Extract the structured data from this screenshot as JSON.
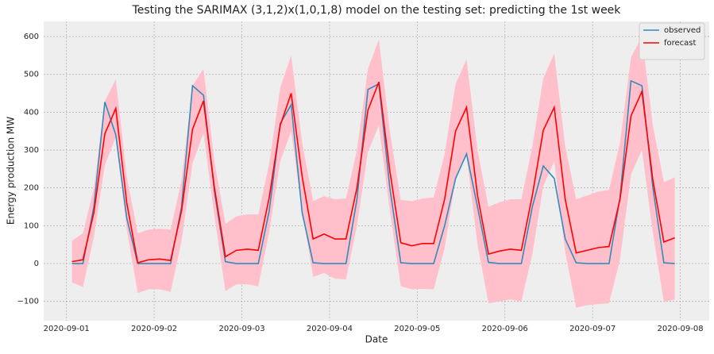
{
  "chart_data": {
    "type": "line",
    "title": "Testing the SARIMAX (3,1,2)x(1,0,1,8) model on the testing set: predicting the 1st week",
    "x_label": "Date",
    "y_label": "Energy production MW",
    "x": [
      1.0625,
      1.1875,
      1.3125,
      1.4375,
      1.5625,
      1.6875,
      1.8125,
      1.9375,
      2.0625,
      2.1875,
      2.3125,
      2.4375,
      2.5625,
      2.6875,
      2.8125,
      2.9375,
      3.0625,
      3.1875,
      3.3125,
      3.4375,
      3.5625,
      3.6875,
      3.8125,
      3.9375,
      4.0625,
      4.1875,
      4.3125,
      4.4375,
      4.5625,
      4.6875,
      4.8125,
      4.9375,
      5.0625,
      5.1875,
      5.3125,
      5.4375,
      5.5625,
      5.6875,
      5.8125,
      5.9375,
      6.0625,
      6.1875,
      6.3125,
      6.4375,
      6.5625,
      6.6875,
      6.8125,
      6.9375,
      7.0625,
      7.1875,
      7.3125,
      7.4375,
      7.5625,
      7.6875,
      7.8125,
      7.9375
    ],
    "band": {
      "color": "#ffc0cb",
      "upper": [
        60,
        80,
        200,
        430,
        487,
        230,
        80,
        90,
        92,
        90,
        220,
        470,
        515,
        270,
        105,
        125,
        130,
        130,
        265,
        465,
        550,
        320,
        165,
        178,
        170,
        172,
        300,
        515,
        592,
        350,
        168,
        165,
        172,
        175,
        290,
        475,
        540,
        300,
        150,
        162,
        170,
        170,
        310,
        490,
        555,
        310,
        170,
        180,
        190,
        195,
        320,
        545,
        600,
        365,
        215,
        228
      ],
      "lower": [
        -50,
        -62,
        70,
        260,
        335,
        90,
        -78,
        -68,
        -68,
        -75,
        60,
        265,
        345,
        125,
        -73,
        -55,
        -55,
        -60,
        85,
        270,
        350,
        140,
        -35,
        -25,
        -40,
        -42,
        100,
        295,
        365,
        140,
        -60,
        -68,
        -67,
        -68,
        40,
        225,
        285,
        50,
        -105,
        -100,
        -95,
        -100,
        25,
        205,
        270,
        30,
        -117,
        -110,
        -107,
        -105,
        10,
        235,
        300,
        80,
        -102,
        -95
      ]
    },
    "series": [
      {
        "name": "observed",
        "color": "#348abd",
        "values": [
          0,
          0,
          150,
          427,
          340,
          120,
          0,
          0,
          0,
          0,
          150,
          470,
          445,
          190,
          5,
          0,
          0,
          0,
          140,
          370,
          420,
          135,
          2,
          0,
          0,
          0,
          170,
          460,
          475,
          200,
          2,
          0,
          0,
          0,
          100,
          225,
          290,
          150,
          3,
          0,
          0,
          0,
          150,
          258,
          225,
          65,
          2,
          0,
          0,
          0,
          175,
          483,
          470,
          200,
          2,
          0
        ]
      },
      {
        "name": "forecast",
        "color": "#ff0000",
        "values": [
          5,
          10,
          135,
          343,
          410,
          160,
          2,
          10,
          12,
          8,
          140,
          355,
          430,
          200,
          18,
          35,
          38,
          35,
          175,
          365,
          450,
          230,
          65,
          78,
          65,
          65,
          200,
          405,
          480,
          245,
          55,
          47,
          53,
          53,
          170,
          350,
          413,
          180,
          25,
          33,
          38,
          35,
          180,
          352,
          413,
          170,
          28,
          35,
          42,
          45,
          170,
          390,
          455,
          220,
          57,
          68
        ]
      }
    ],
    "xlim": [
      0.74,
      8.33
    ],
    "xticks": [
      {
        "value": 1,
        "label": "2020-09-01"
      },
      {
        "value": 2,
        "label": "2020-09-02"
      },
      {
        "value": 3,
        "label": "2020-09-03"
      },
      {
        "value": 4,
        "label": "2020-09-04"
      },
      {
        "value": 5,
        "label": "2020-09-05"
      },
      {
        "value": 6,
        "label": "2020-09-06"
      },
      {
        "value": 7,
        "label": "2020-09-07"
      },
      {
        "value": 8,
        "label": "2020-09-08"
      }
    ],
    "ylim": [
      -151,
      640
    ],
    "yticks": [
      {
        "value": -100,
        "label": "−100"
      },
      0,
      100,
      200,
      300,
      400,
      500,
      600
    ],
    "grid": true,
    "legend": "upper right"
  }
}
